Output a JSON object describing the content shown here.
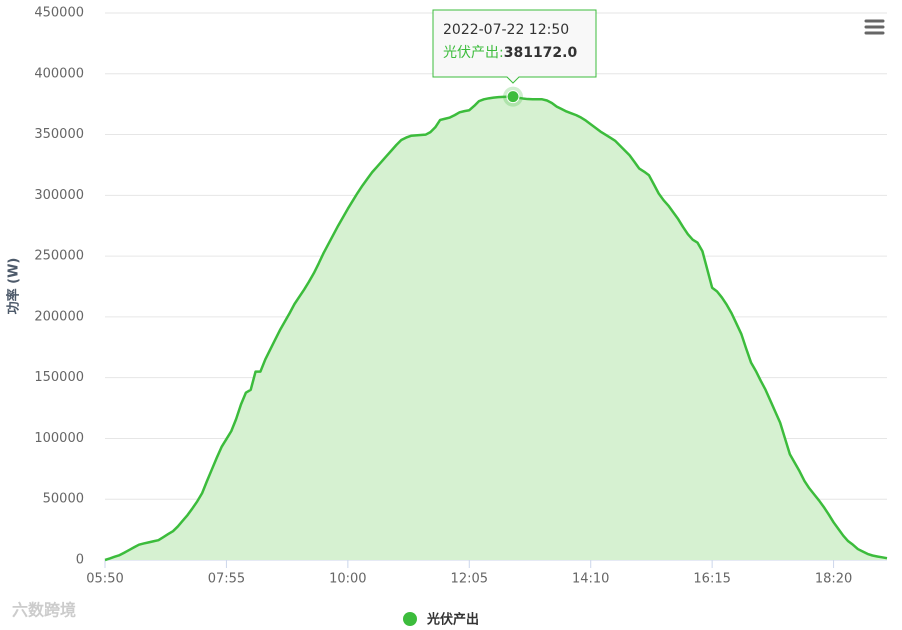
{
  "chart_data": {
    "type": "area",
    "y_axis_title": "功率 (W)",
    "categories": [
      "05:50",
      null,
      null,
      null,
      null,
      null,
      null,
      null,
      null,
      null,
      null,
      null,
      null,
      null,
      null,
      null,
      null,
      null,
      null,
      null,
      null,
      null,
      null,
      null,
      null,
      "07:55",
      null,
      null,
      null,
      null,
      null,
      null,
      null,
      null,
      null,
      null,
      null,
      null,
      null,
      null,
      null,
      null,
      null,
      null,
      null,
      null,
      null,
      null,
      null,
      null,
      "10:00",
      null,
      null,
      null,
      null,
      null,
      null,
      null,
      null,
      null,
      null,
      null,
      null,
      null,
      null,
      null,
      null,
      null,
      null,
      null,
      null,
      null,
      null,
      null,
      null,
      "12:05",
      null,
      null,
      null,
      null,
      null,
      null,
      null,
      null,
      null,
      null,
      null,
      null,
      null,
      null,
      null,
      null,
      null,
      null,
      null,
      null,
      null,
      null,
      null,
      null,
      "14:10",
      null,
      null,
      null,
      null,
      null,
      null,
      null,
      null,
      null,
      null,
      null,
      null,
      null,
      null,
      null,
      null,
      null,
      null,
      null,
      null,
      null,
      null,
      null,
      null,
      "16:15",
      null,
      null,
      null,
      null,
      null,
      null,
      null,
      null,
      null,
      null,
      null,
      null,
      null,
      null,
      null,
      null,
      null,
      null,
      null,
      null,
      null,
      null,
      null,
      null,
      "18:20",
      null,
      null,
      null,
      null,
      null,
      null,
      null,
      null,
      null,
      null,
      null
    ],
    "series": [
      {
        "name": "光伏产出",
        "color": "#3cbc3c",
        "fill": "#d6f1d1",
        "values": [
          0,
          1300,
          2700,
          4000,
          6100,
          8300,
          10500,
          12600,
          13600,
          14500,
          15400,
          16300,
          18800,
          21300,
          23700,
          27600,
          32300,
          37000,
          42500,
          48300,
          55000,
          65000,
          74500,
          84000,
          93000,
          99500,
          106000,
          116000,
          128000,
          137600,
          140000,
          155000,
          155000,
          165000,
          173000,
          181000,
          189000,
          196000,
          203000,
          210500,
          216500,
          222500,
          229000,
          236000,
          244000,
          252500,
          260000,
          267500,
          275000,
          282000,
          289000,
          295500,
          302000,
          308000,
          313500,
          319000,
          323500,
          328000,
          332500,
          337000,
          341500,
          345500,
          347500,
          349000,
          349300,
          349600,
          349900,
          352000,
          356000,
          362000,
          363000,
          364000,
          366000,
          368300,
          369300,
          370000,
          373500,
          377500,
          379000,
          379800,
          380400,
          380800,
          381000,
          381100,
          381172,
          380300,
          379700,
          379200,
          379000,
          379000,
          379000,
          378000,
          376000,
          373000,
          371000,
          369000,
          367500,
          366000,
          364000,
          361500,
          358500,
          355500,
          352500,
          350000,
          347500,
          345000,
          341000,
          337000,
          333000,
          327500,
          322000,
          319500,
          316500,
          309000,
          301500,
          296000,
          291500,
          286000,
          280500,
          274000,
          268000,
          263500,
          261000,
          254000,
          239000,
          224000,
          221000,
          216000,
          210000,
          203000,
          194500,
          186000,
          174000,
          162500,
          155500,
          147500,
          140000,
          131000,
          122000,
          113000,
          100000,
          87000,
          80000,
          73000,
          65000,
          59000,
          54000,
          49000,
          43500,
          37500,
          31000,
          25500,
          20000,
          15500,
          12500,
          9000,
          7000,
          5000,
          3700,
          2900,
          2200,
          1500
        ]
      }
    ],
    "ylim": [
      0,
      450000
    ],
    "yticks": [
      0,
      50000,
      100000,
      150000,
      200000,
      250000,
      300000,
      350000,
      400000,
      450000
    ],
    "grid": true,
    "tooltip": {
      "title": "2022-07-22 12:50",
      "series_label": "光伏产出:",
      "value": 381172,
      "value_label": "381172.0"
    },
    "watermark": "六数跨境"
  }
}
